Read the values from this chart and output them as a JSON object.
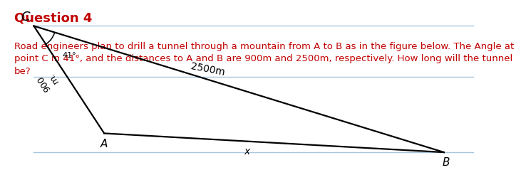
{
  "title": "Question 4",
  "title_color": "#C00000",
  "title_fontsize": 13,
  "body_text": "Road engineers plan to drill a tunnel through a mountain from A to B as in the figure below. The Angle at\npoint C in 41°, and the distances to A and B are 900m and 2500m, respectively. How long will the tunnel\nbe?",
  "body_color": "#C00000",
  "body_fontsize": 9.5,
  "bg_color": "#ffffff",
  "line_color": "#a8c4e0",
  "line_lw": 1.0,
  "triangle_color": "#000000",
  "triangle_lw": 1.6,
  "C_data": [
    0.055,
    0.88
  ],
  "A_data": [
    0.2,
    0.2
  ],
  "B_data": [
    0.9,
    0.08
  ],
  "label_C": "C",
  "label_A": "A",
  "label_B": "B",
  "label_x": "x",
  "label_2500": "2500m",
  "label_900": "900\nm.",
  "label_41": "41°",
  "handwritten_fontsize": 10
}
